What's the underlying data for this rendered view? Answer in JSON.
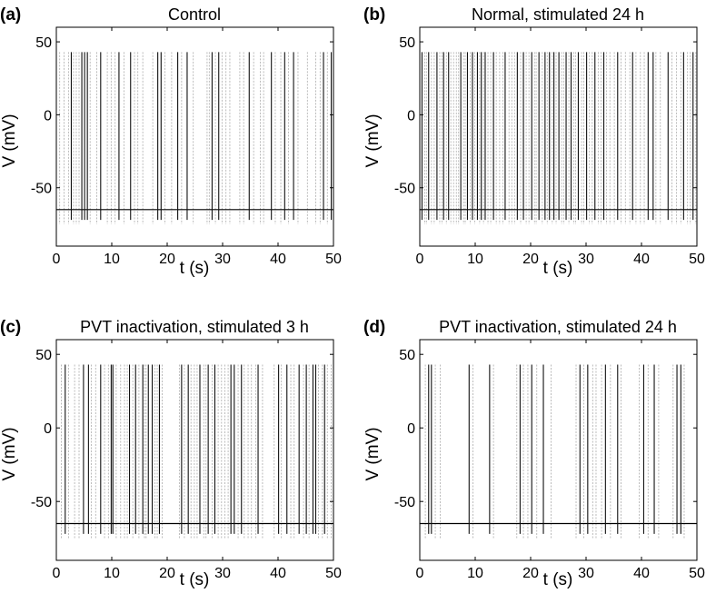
{
  "chart_data": [
    {
      "type": "line",
      "panel_label": "(a)",
      "title": "Control",
      "xlabel": "t (s)",
      "ylabel": "V (mV)",
      "xlim": [
        0,
        50
      ],
      "ylim": [
        -90,
        60
      ],
      "xticks": [
        0,
        10,
        20,
        30,
        40,
        50
      ],
      "yticks": [
        50,
        0,
        -50
      ],
      "xtick_labels": [
        "0",
        "10",
        "20",
        "30",
        "40",
        "50"
      ],
      "ytick_labels": [
        "50",
        "0",
        "-50"
      ],
      "resting_potential": -65,
      "spike_peak": 43,
      "afterhyperpolarization": -75,
      "spike_times_strong": [
        2.7,
        4.6,
        5.1,
        5.6,
        8.0,
        11.3,
        13.4,
        18.3,
        18.9,
        21.9,
        23.6,
        28.1,
        29.3,
        34.8,
        38.8,
        41.2,
        42.8,
        48.2,
        49.6
      ],
      "spike_times_faint": [
        0.6,
        1.4,
        2.2,
        3.1,
        3.6,
        4.1,
        6.1,
        7.3,
        9.2,
        9.9,
        10.6,
        12.2,
        14.1,
        14.7,
        15.6,
        17.4,
        19.6,
        20.8,
        22.6,
        24.7,
        27.2,
        27.6,
        28.7,
        29.9,
        30.6,
        31.3,
        33.1,
        33.8,
        35.6,
        36.8,
        37.4,
        39.5,
        40.5,
        41.9,
        43.6,
        45.3,
        46.8,
        47.6,
        48.9
      ]
    },
    {
      "type": "line",
      "panel_label": "(b)",
      "title": "Normal, stimulated 24 h",
      "xlabel": "t (s)",
      "ylabel": "V (mV)",
      "xlim": [
        0,
        50
      ],
      "ylim": [
        -90,
        60
      ],
      "xticks": [
        0,
        10,
        20,
        30,
        40,
        50
      ],
      "yticks": [
        50,
        0,
        -50
      ],
      "xtick_labels": [
        "0",
        "10",
        "20",
        "30",
        "40",
        "50"
      ],
      "ytick_labels": [
        "50",
        "0",
        "-50"
      ],
      "resting_potential": -65,
      "spike_peak": 43,
      "afterhyperpolarization": -75,
      "spike_times_strong": [
        0.4,
        1.6,
        3.1,
        4.3,
        5.2,
        7.4,
        8.6,
        9.5,
        10.4,
        11.1,
        11.8,
        13.3,
        15.4,
        17.6,
        18.7,
        20.2,
        21.5,
        22.6,
        23.4,
        24.2,
        25.1,
        26.4,
        27.3,
        28.6,
        30.1,
        31.6,
        33.2,
        35.7,
        38.4,
        41.2,
        42.1,
        44.8,
        47.6,
        49.3
      ],
      "spike_times_faint": [
        0.9,
        1.2,
        2.1,
        2.6,
        3.6,
        4.0,
        4.8,
        5.6,
        6.1,
        6.6,
        7.0,
        7.9,
        8.2,
        9.1,
        9.9,
        10.8,
        11.5,
        12.3,
        12.8,
        13.8,
        14.4,
        15.0,
        16.1,
        16.6,
        17.1,
        18.2,
        19.2,
        19.7,
        20.7,
        21.0,
        22.1,
        23.0,
        23.9,
        24.6,
        25.6,
        26.0,
        26.9,
        27.8,
        28.1,
        29.2,
        29.6,
        30.6,
        31.1,
        32.2,
        32.7,
        33.7,
        34.3,
        35.1,
        36.3,
        37.1,
        37.9,
        39.0,
        39.8,
        40.5,
        42.6,
        43.4,
        45.5,
        46.3,
        47.1,
        48.3,
        48.8,
        49.8
      ]
    },
    {
      "type": "line",
      "panel_label": "(c)",
      "title": "PVT inactivation, stimulated 3 h",
      "xlabel": "t (s)",
      "ylabel": "V (mV)",
      "xlim": [
        0,
        50
      ],
      "ylim": [
        -90,
        60
      ],
      "xticks": [
        0,
        10,
        20,
        30,
        40,
        50
      ],
      "yticks": [
        50,
        0,
        -50
      ],
      "xtick_labels": [
        "0",
        "10",
        "20",
        "30",
        "40",
        "50"
      ],
      "ytick_labels": [
        "50",
        "0",
        "-50"
      ],
      "resting_potential": -65,
      "spike_peak": 43,
      "afterhyperpolarization": -75,
      "spike_times_strong": [
        1.6,
        4.9,
        5.8,
        8.0,
        9.9,
        10.2,
        13.2,
        14.3,
        15.6,
        16.6,
        17.3,
        18.6,
        22.6,
        23.8,
        25.9,
        27.4,
        28.6,
        31.5,
        32.1,
        33.4,
        36.4,
        40.1,
        41.6,
        43.8,
        45.1,
        46.3,
        46.8,
        48.4
      ],
      "spike_times_faint": [
        0.9,
        2.2,
        3.3,
        4.1,
        6.3,
        7.1,
        8.7,
        9.4,
        10.8,
        11.6,
        12.3,
        12.8,
        13.8,
        14.9,
        15.9,
        16.2,
        17.8,
        18.2,
        19.1,
        22.2,
        23.1,
        24.3,
        24.9,
        25.4,
        26.6,
        27.0,
        28.1,
        29.2,
        29.8,
        30.4,
        31.0,
        32.8,
        33.9,
        34.6,
        35.2,
        36.0,
        37.2,
        39.3,
        40.6,
        42.3,
        42.9,
        44.6,
        45.6,
        47.3,
        48.0,
        48.9,
        49.6
      ]
    },
    {
      "type": "line",
      "panel_label": "(d)",
      "title": "PVT inactivation, stimulated 24 h",
      "xlabel": "t (s)",
      "ylabel": "V (mV)",
      "xlim": [
        0,
        50
      ],
      "ylim": [
        -90,
        60
      ],
      "xticks": [
        0,
        10,
        20,
        30,
        40,
        50
      ],
      "yticks": [
        50,
        0,
        -50
      ],
      "xtick_labels": [
        "0",
        "10",
        "20",
        "30",
        "40",
        "50"
      ],
      "ytick_labels": [
        "50",
        "0",
        "-50"
      ],
      "resting_potential": -65,
      "spike_peak": 43,
      "afterhyperpolarization": -75,
      "spike_times_strong": [
        1.6,
        2.1,
        8.9,
        12.6,
        18.1,
        20.2,
        22.3,
        28.9,
        30.3,
        33.5,
        35.7,
        40.4,
        42.3,
        46.4,
        47.1
      ],
      "spike_times_faint": [
        1.0,
        2.8,
        3.7,
        9.6,
        13.3,
        17.5,
        18.7,
        19.5,
        21.1,
        23.7,
        28.2,
        29.6,
        31.2,
        31.8,
        32.8,
        34.4,
        36.3,
        39.6,
        41.2,
        43.1,
        45.7,
        47.7
      ]
    }
  ]
}
